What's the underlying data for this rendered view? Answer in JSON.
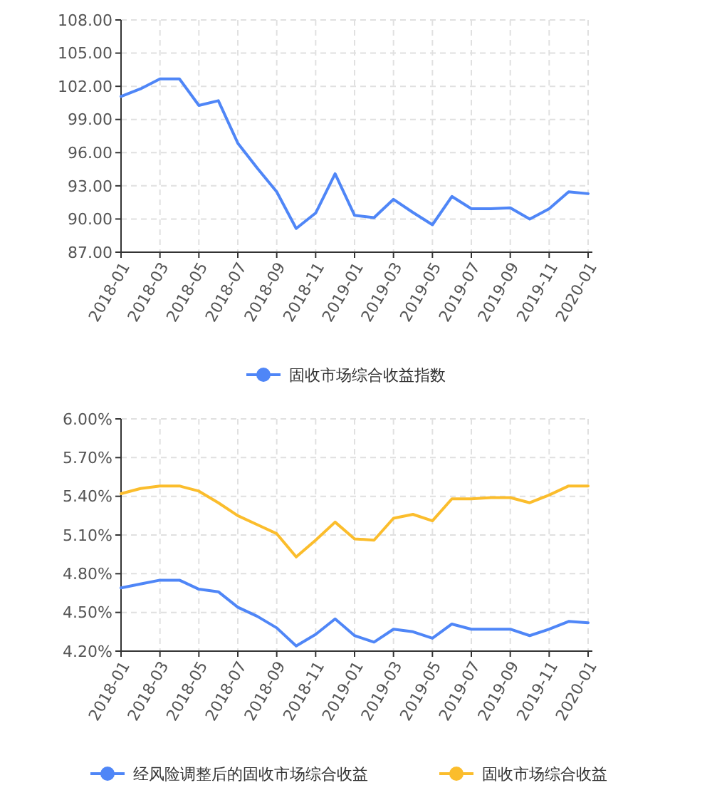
{
  "chart_data": [
    {
      "type": "line",
      "categories": [
        "2018-01",
        null,
        "2018-03",
        null,
        "2018-05",
        null,
        "2018-07",
        null,
        "2018-09",
        null,
        "2018-11",
        null,
        "2019-01",
        null,
        "2019-03",
        null,
        "2019-05",
        null,
        "2019-07",
        null,
        "2019-09",
        null,
        "2019-11",
        null,
        "2020-01"
      ],
      "series": [
        {
          "name": "固收市场综合收益指数",
          "color": "#4f86f7",
          "values": [
            101.09,
            101.77,
            102.67,
            102.67,
            100.27,
            100.7,
            96.86,
            94.6,
            92.46,
            89.14,
            90.54,
            94.09,
            90.33,
            90.12,
            91.78,
            90.59,
            89.48,
            92.04,
            90.93,
            90.93,
            91.01,
            89.99,
            90.93,
            92.46,
            92.29
          ]
        }
      ],
      "ylim": [
        87,
        108
      ],
      "yticks": [
        {
          "value": 87,
          "label": "87.00"
        },
        {
          "value": 90,
          "label": "90.00"
        },
        {
          "value": 93,
          "label": "93.00"
        },
        {
          "value": 96,
          "label": "96.00"
        },
        {
          "value": 99,
          "label": "99.00"
        },
        {
          "value": 102,
          "label": "102.00"
        },
        {
          "value": 105,
          "label": "105.00"
        },
        {
          "value": 108,
          "label": "108.00"
        }
      ],
      "grid": true,
      "legend": "bottom"
    },
    {
      "type": "line",
      "categories": [
        "2018-01",
        null,
        "2018-03",
        null,
        "2018-05",
        null,
        "2018-07",
        null,
        "2018-09",
        null,
        "2018-11",
        null,
        "2019-01",
        null,
        "2019-03",
        null,
        "2019-05",
        null,
        "2019-07",
        null,
        "2019-09",
        null,
        "2019-11",
        null,
        "2020-01"
      ],
      "series": [
        {
          "name": "经风险调整后的固收市场综合收益",
          "color": "#4f86f7",
          "values": [
            4.69,
            4.72,
            4.75,
            4.75,
            4.68,
            4.66,
            4.54,
            4.47,
            4.38,
            4.24,
            4.33,
            4.45,
            4.32,
            4.27,
            4.37,
            4.35,
            4.3,
            4.41,
            4.37,
            4.37,
            4.37,
            4.32,
            4.37,
            4.43,
            4.42
          ]
        },
        {
          "name": "固收市场综合收益",
          "color": "#fbbd2c",
          "values": [
            5.42,
            5.46,
            5.48,
            5.48,
            5.44,
            5.35,
            5.25,
            5.18,
            5.11,
            4.93,
            5.06,
            5.2,
            5.07,
            5.06,
            5.23,
            5.26,
            5.21,
            5.38,
            5.38,
            5.39,
            5.39,
            5.35,
            5.41,
            5.48,
            5.48
          ]
        }
      ],
      "ylim": [
        4.2,
        6.0
      ],
      "yticks": [
        {
          "value": 4.2,
          "label": "4.20%"
        },
        {
          "value": 4.5,
          "label": "4.50%"
        },
        {
          "value": 4.8,
          "label": "4.80%"
        },
        {
          "value": 5.1,
          "label": "5.10%"
        },
        {
          "value": 5.4,
          "label": "5.40%"
        },
        {
          "value": 5.7,
          "label": "5.70%"
        },
        {
          "value": 6.0,
          "label": "6.00%"
        }
      ],
      "grid": true,
      "legend": "bottom"
    }
  ]
}
